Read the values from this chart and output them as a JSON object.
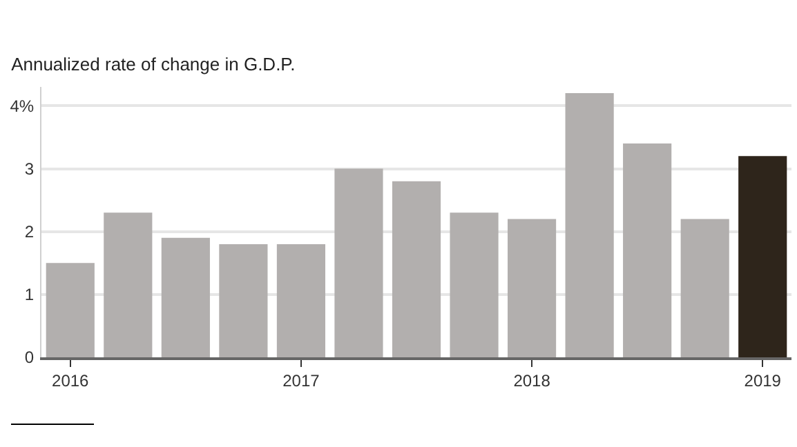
{
  "chart_data": {
    "type": "bar",
    "title": "Annualized rate of change in G.D.P.",
    "categories": [
      "2016",
      null,
      null,
      null,
      "2017",
      null,
      null,
      null,
      "2018",
      null,
      null,
      null,
      "2019"
    ],
    "values": [
      1.5,
      2.3,
      1.9,
      1.8,
      1.8,
      3.0,
      2.8,
      2.3,
      2.2,
      4.2,
      3.4,
      2.2,
      3.2
    ],
    "colors": [
      "#b2afae",
      "#b2afae",
      "#b2afae",
      "#b2afae",
      "#b2afae",
      "#b2afae",
      "#b2afae",
      "#b2afae",
      "#b2afae",
      "#b2afae",
      "#b2afae",
      "#b2afae",
      "#2e251b"
    ],
    "ylim": [
      0,
      4.3
    ],
    "yticks": [
      0,
      1,
      2,
      3,
      {
        "value": 4,
        "label": "4%"
      }
    ],
    "grid": "y"
  }
}
